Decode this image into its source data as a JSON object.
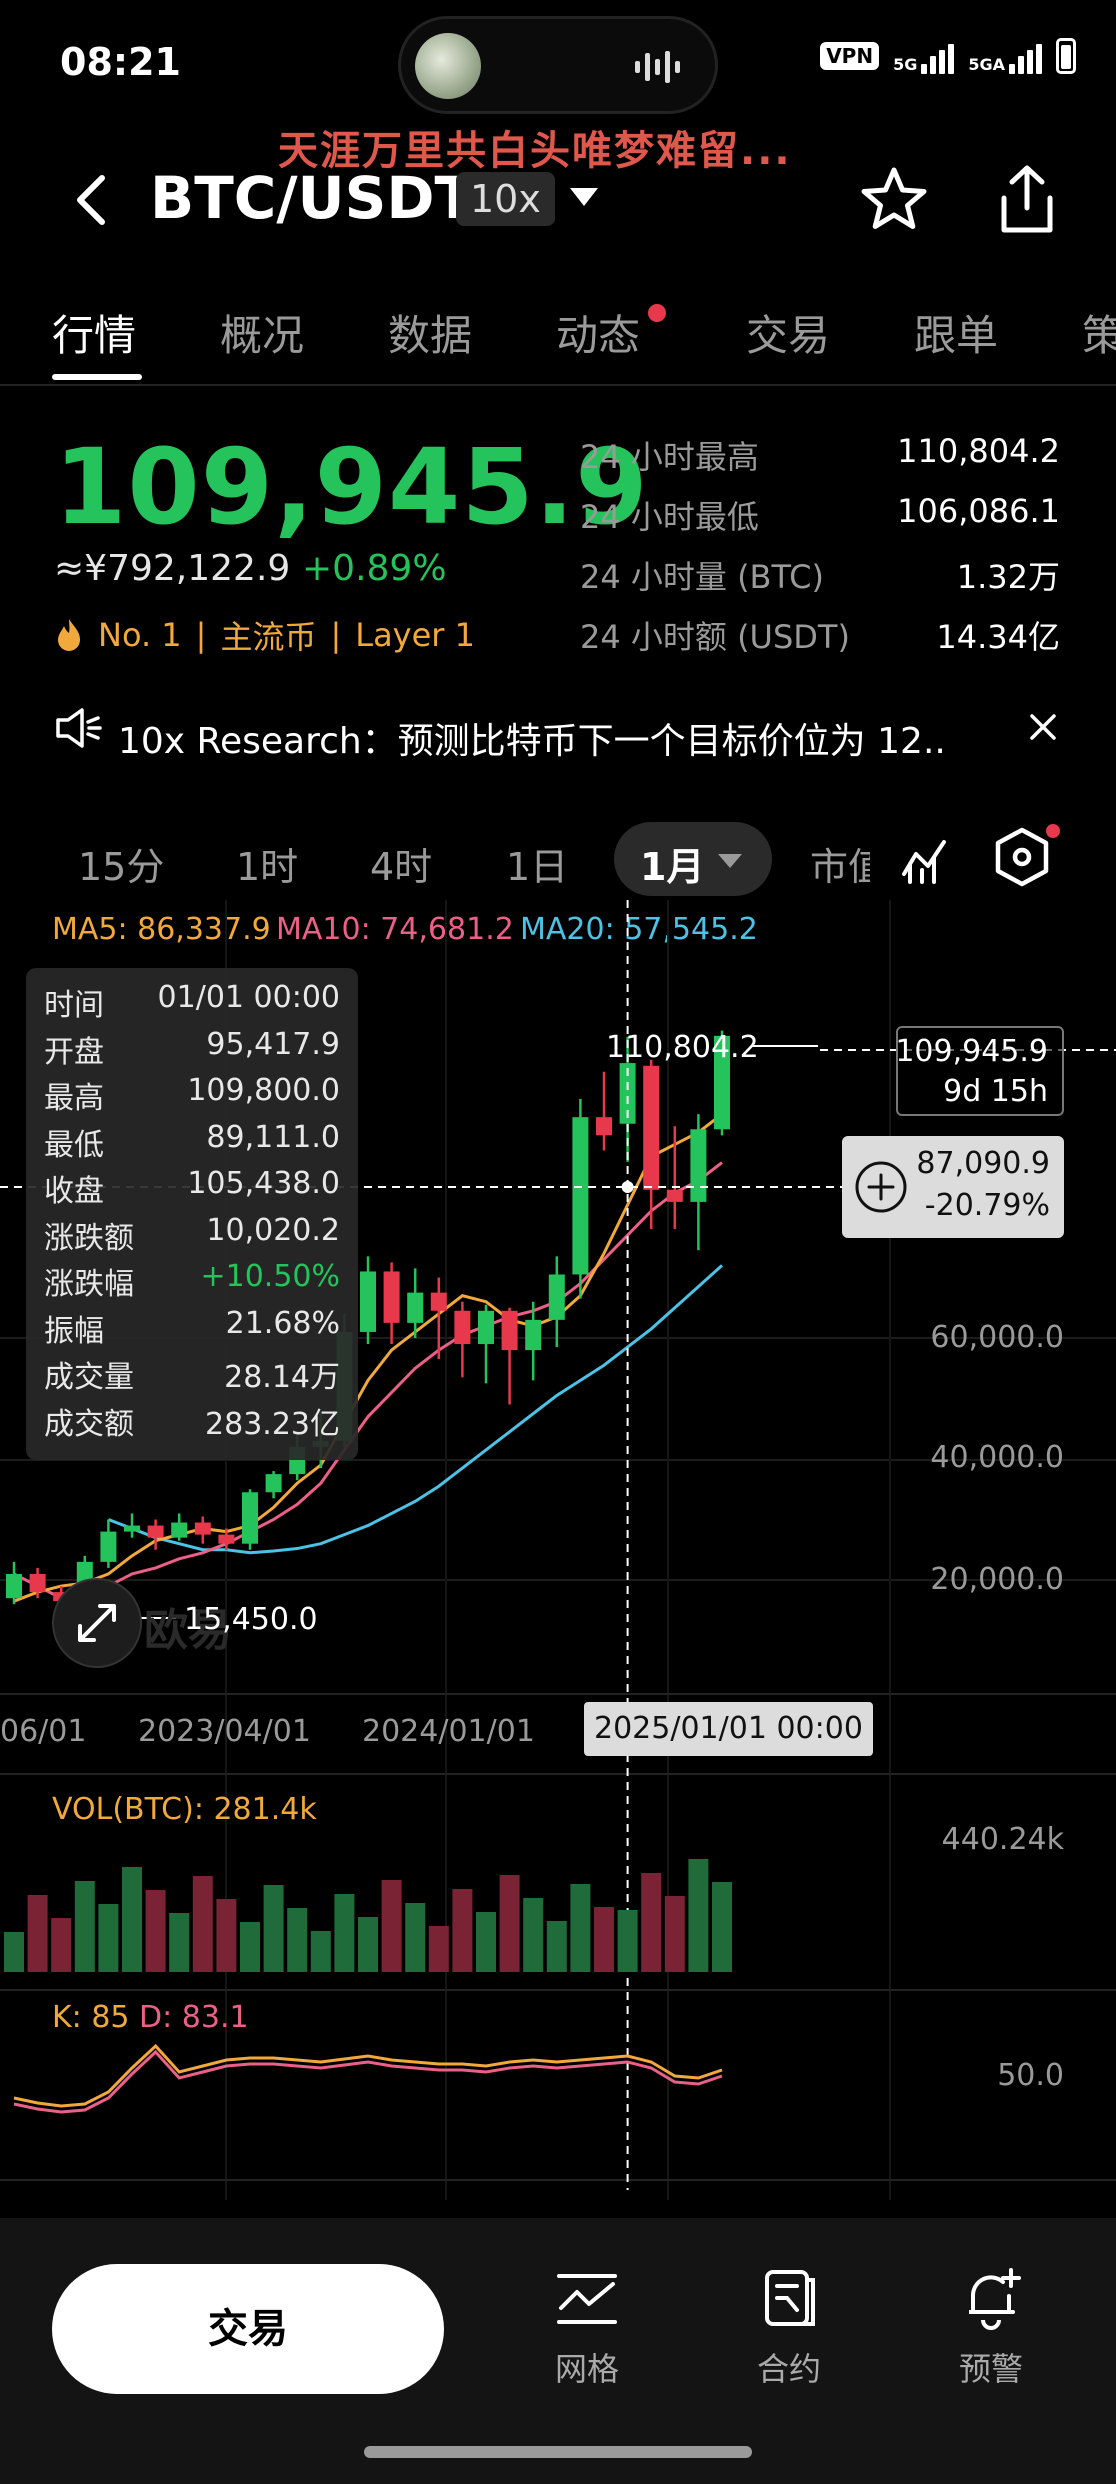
{
  "status": {
    "time": "08:21",
    "vpn": "VPN",
    "sig1": "5G",
    "sig2": "5GA"
  },
  "overlay_text": "天涯万里共白头唯梦难留...",
  "header": {
    "pair": "BTC/USDT",
    "leverage": "10x"
  },
  "tabs": [
    {
      "label": "行情",
      "active": true
    },
    {
      "label": "概况"
    },
    {
      "label": "数据"
    },
    {
      "label": "动态",
      "dot": true
    },
    {
      "label": "交易"
    },
    {
      "label": "跟单"
    },
    {
      "label": "策"
    }
  ],
  "ticker": {
    "price": "109,945.9",
    "cny": "≈¥792,122.9",
    "change": "+0.89%",
    "tags": [
      "No. 1",
      "|",
      "主流币",
      "|",
      "Layer 1"
    ],
    "stats": [
      {
        "label": "24 小时最高",
        "value": "110,804.2"
      },
      {
        "label": "24 小时最低",
        "value": "106,086.1"
      },
      {
        "label": "24 小时量 (BTC)",
        "value": "1.32万"
      },
      {
        "label": "24 小时额 (USDT)",
        "value": "14.34亿"
      }
    ]
  },
  "news": {
    "text": "10x Research：预测比特币下一个目标价位为 12.."
  },
  "intervals": {
    "items": [
      "15分",
      "1时",
      "4时",
      "1日"
    ],
    "selected": "1月",
    "more": "市值"
  },
  "ma": {
    "ma5": "MA5: 86,337.9",
    "ma10": "MA10: 74,681.2",
    "ma20": "MA20: 57,545.2",
    "colors": {
      "ma5": "#f2a93b",
      "ma10": "#ec5f86",
      "ma20": "#4cc3e6"
    }
  },
  "tooltip": [
    {
      "k": "时间",
      "v": "01/01 00:00"
    },
    {
      "k": "开盘",
      "v": "95,417.9"
    },
    {
      "k": "最高",
      "v": "109,800.0"
    },
    {
      "k": "最低",
      "v": "89,111.0"
    },
    {
      "k": "收盘",
      "v": "105,438.0"
    },
    {
      "k": "涨跌额",
      "v": "10,020.2"
    },
    {
      "k": "涨跌幅",
      "v": "+10.50%",
      "color": "#25c35b"
    },
    {
      "k": "振幅",
      "v": "21.68%"
    },
    {
      "k": "成交量",
      "v": "28.14万"
    },
    {
      "k": "成交额",
      "v": "283.23亿"
    }
  ],
  "price_box": {
    "price": "109,945.9",
    "countdown": "9d 15h"
  },
  "crosshair_box": {
    "price": "87,090.9",
    "pct": "-20.79%"
  },
  "chart": {
    "high_label": "110,804.2",
    "low_label": "15,450.0",
    "y_ticks": [
      "60,000.0",
      "40,000.0",
      "20,000.0"
    ],
    "x_ticks": [
      "06/01",
      "2023/04/01",
      "2024/01/01"
    ],
    "x_selected": "2025/01/01 00:00",
    "watermark": "欧易"
  },
  "chart_data": {
    "type": "candlestick",
    "interval": "1月",
    "colors": {
      "up": "#25c35b",
      "down": "#e8384b"
    },
    "candles_approx": [
      {
        "o": 17000,
        "c": 21000,
        "h": 23000,
        "l": 16000
      },
      {
        "o": 21000,
        "c": 18000,
        "h": 22000,
        "l": 17000
      },
      {
        "o": 18000,
        "c": 16500,
        "h": 19000,
        "l": 15450
      },
      {
        "o": 16500,
        "c": 23000,
        "h": 24000,
        "l": 16000
      },
      {
        "o": 23000,
        "c": 28000,
        "h": 30000,
        "l": 22000
      },
      {
        "o": 28000,
        "c": 29000,
        "h": 31000,
        "l": 27000
      },
      {
        "o": 29000,
        "c": 27000,
        "h": 30000,
        "l": 25000
      },
      {
        "o": 27000,
        "c": 29500,
        "h": 31000,
        "l": 26500
      },
      {
        "o": 29500,
        "c": 27500,
        "h": 30500,
        "l": 26000
      },
      {
        "o": 27500,
        "c": 26000,
        "h": 28500,
        "l": 24900
      },
      {
        "o": 26000,
        "c": 34500,
        "h": 35000,
        "l": 25000
      },
      {
        "o": 34500,
        "c": 37500,
        "h": 38000,
        "l": 33500
      },
      {
        "o": 37500,
        "c": 42000,
        "h": 44000,
        "l": 36500
      },
      {
        "o": 42000,
        "c": 43000,
        "h": 48000,
        "l": 38500
      },
      {
        "o": 43000,
        "c": 61000,
        "h": 64000,
        "l": 42000
      },
      {
        "o": 61000,
        "c": 71000,
        "h": 73500,
        "l": 59000
      },
      {
        "o": 71000,
        "c": 62500,
        "h": 72500,
        "l": 59000
      },
      {
        "o": 62500,
        "c": 67500,
        "h": 71500,
        "l": 60000
      },
      {
        "o": 67500,
        "c": 64500,
        "h": 70000,
        "l": 56500
      },
      {
        "o": 64500,
        "c": 59000,
        "h": 66000,
        "l": 53500
      },
      {
        "o": 59000,
        "c": 64500,
        "h": 65500,
        "l": 52500
      },
      {
        "o": 64500,
        "c": 58000,
        "h": 65000,
        "l": 49000
      },
      {
        "o": 58000,
        "c": 63000,
        "h": 66000,
        "l": 53000
      },
      {
        "o": 63000,
        "c": 70500,
        "h": 73500,
        "l": 58500
      },
      {
        "o": 70500,
        "c": 96500,
        "h": 99500,
        "l": 66500
      },
      {
        "o": 96500,
        "c": 93500,
        "h": 104000,
        "l": 91000
      },
      {
        "o": 95417.9,
        "c": 105438,
        "h": 109800,
        "l": 89111
      },
      {
        "o": 105000,
        "c": 84500,
        "h": 106000,
        "l": 78000
      },
      {
        "o": 84500,
        "c": 82500,
        "h": 95000,
        "l": 78000
      },
      {
        "o": 82500,
        "c": 94500,
        "h": 97000,
        "l": 74500
      },
      {
        "o": 94500,
        "c": 109945.9,
        "h": 110804.2,
        "l": 93500
      }
    ],
    "ma5_approx": [
      16500,
      18000,
      19000,
      19500,
      21000,
      24000,
      26500,
      27500,
      28500,
      28000,
      29000,
      32000,
      36000,
      39000,
      46000,
      53000,
      58000,
      61000,
      64000,
      67000,
      66000,
      63000,
      62000,
      63500,
      67000,
      74000,
      82000,
      90000,
      92000,
      94000,
      97000
    ],
    "ma10_approx": [
      21000,
      19000,
      17000,
      17500,
      19000,
      21000,
      22000,
      23500,
      24500,
      26000,
      28000,
      30000,
      32500,
      36000,
      41500,
      47000,
      51000,
      55000,
      58000,
      60500,
      62000,
      63500,
      64500,
      66000,
      69000,
      73000,
      77000,
      81000,
      84000,
      86000,
      89000
    ],
    "ma20_approx": [
      30000,
      28500,
      27000,
      26000,
      25000,
      25000,
      24500,
      24800,
      25200,
      26000,
      27500,
      29000,
      31000,
      33000,
      35500,
      38500,
      41500,
      44500,
      47500,
      50500,
      53000,
      55500,
      58500,
      61500,
      65000,
      68500,
      72000
    ],
    "volume_label": "VOL(BTC): 281.4k",
    "volume_max_label": "440.24k",
    "kd_label_k": "K: 85",
    "kd_label_d": "D: 83.1",
    "kd_mid_label": "50.0"
  },
  "bottom": {
    "trade": "交易",
    "nav": [
      {
        "label": "网格",
        "icon": "grid-chart-icon"
      },
      {
        "label": "合约",
        "icon": "contract-document-icon"
      },
      {
        "label": "预警",
        "icon": "alert-bell-icon"
      }
    ]
  }
}
